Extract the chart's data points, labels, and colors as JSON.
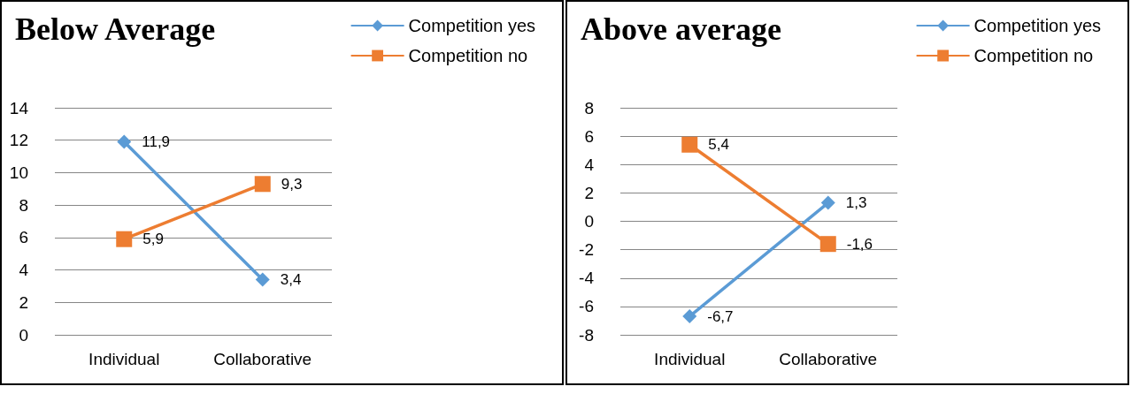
{
  "chart_data": [
    {
      "type": "line",
      "title": "Below Average",
      "categories": [
        "Individual",
        "Collaborative"
      ],
      "series": [
        {
          "name": "Competition yes",
          "color": "#5b9bd5",
          "marker": "diamond",
          "values": [
            11.9,
            3.4
          ],
          "value_labels": [
            "11,9",
            "3,4"
          ]
        },
        {
          "name": "Competition no",
          "color": "#ed7d31",
          "marker": "square",
          "values": [
            5.9,
            9.3
          ],
          "value_labels": [
            "5,9",
            "9,3"
          ]
        }
      ],
      "ylim": [
        0,
        14
      ],
      "yticks": [
        0,
        2,
        4,
        6,
        8,
        10,
        12,
        14
      ],
      "grid": "y",
      "legend": "top right"
    },
    {
      "type": "line",
      "title": "Above average",
      "categories": [
        "Individual",
        "Collaborative"
      ],
      "series": [
        {
          "name": "Competition yes",
          "color": "#5b9bd5",
          "marker": "diamond",
          "values": [
            -6.7,
            1.3
          ],
          "value_labels": [
            "-6,7",
            "1,3"
          ]
        },
        {
          "name": "Competition no",
          "color": "#ed7d31",
          "marker": "square",
          "values": [
            5.4,
            -1.6
          ],
          "value_labels": [
            "5,4",
            "-1,6"
          ]
        }
      ],
      "ylim": [
        -8,
        8
      ],
      "yticks": [
        -8,
        -6,
        -4,
        -2,
        0,
        2,
        4,
        6,
        8
      ],
      "grid": "y",
      "legend": "top right"
    }
  ]
}
